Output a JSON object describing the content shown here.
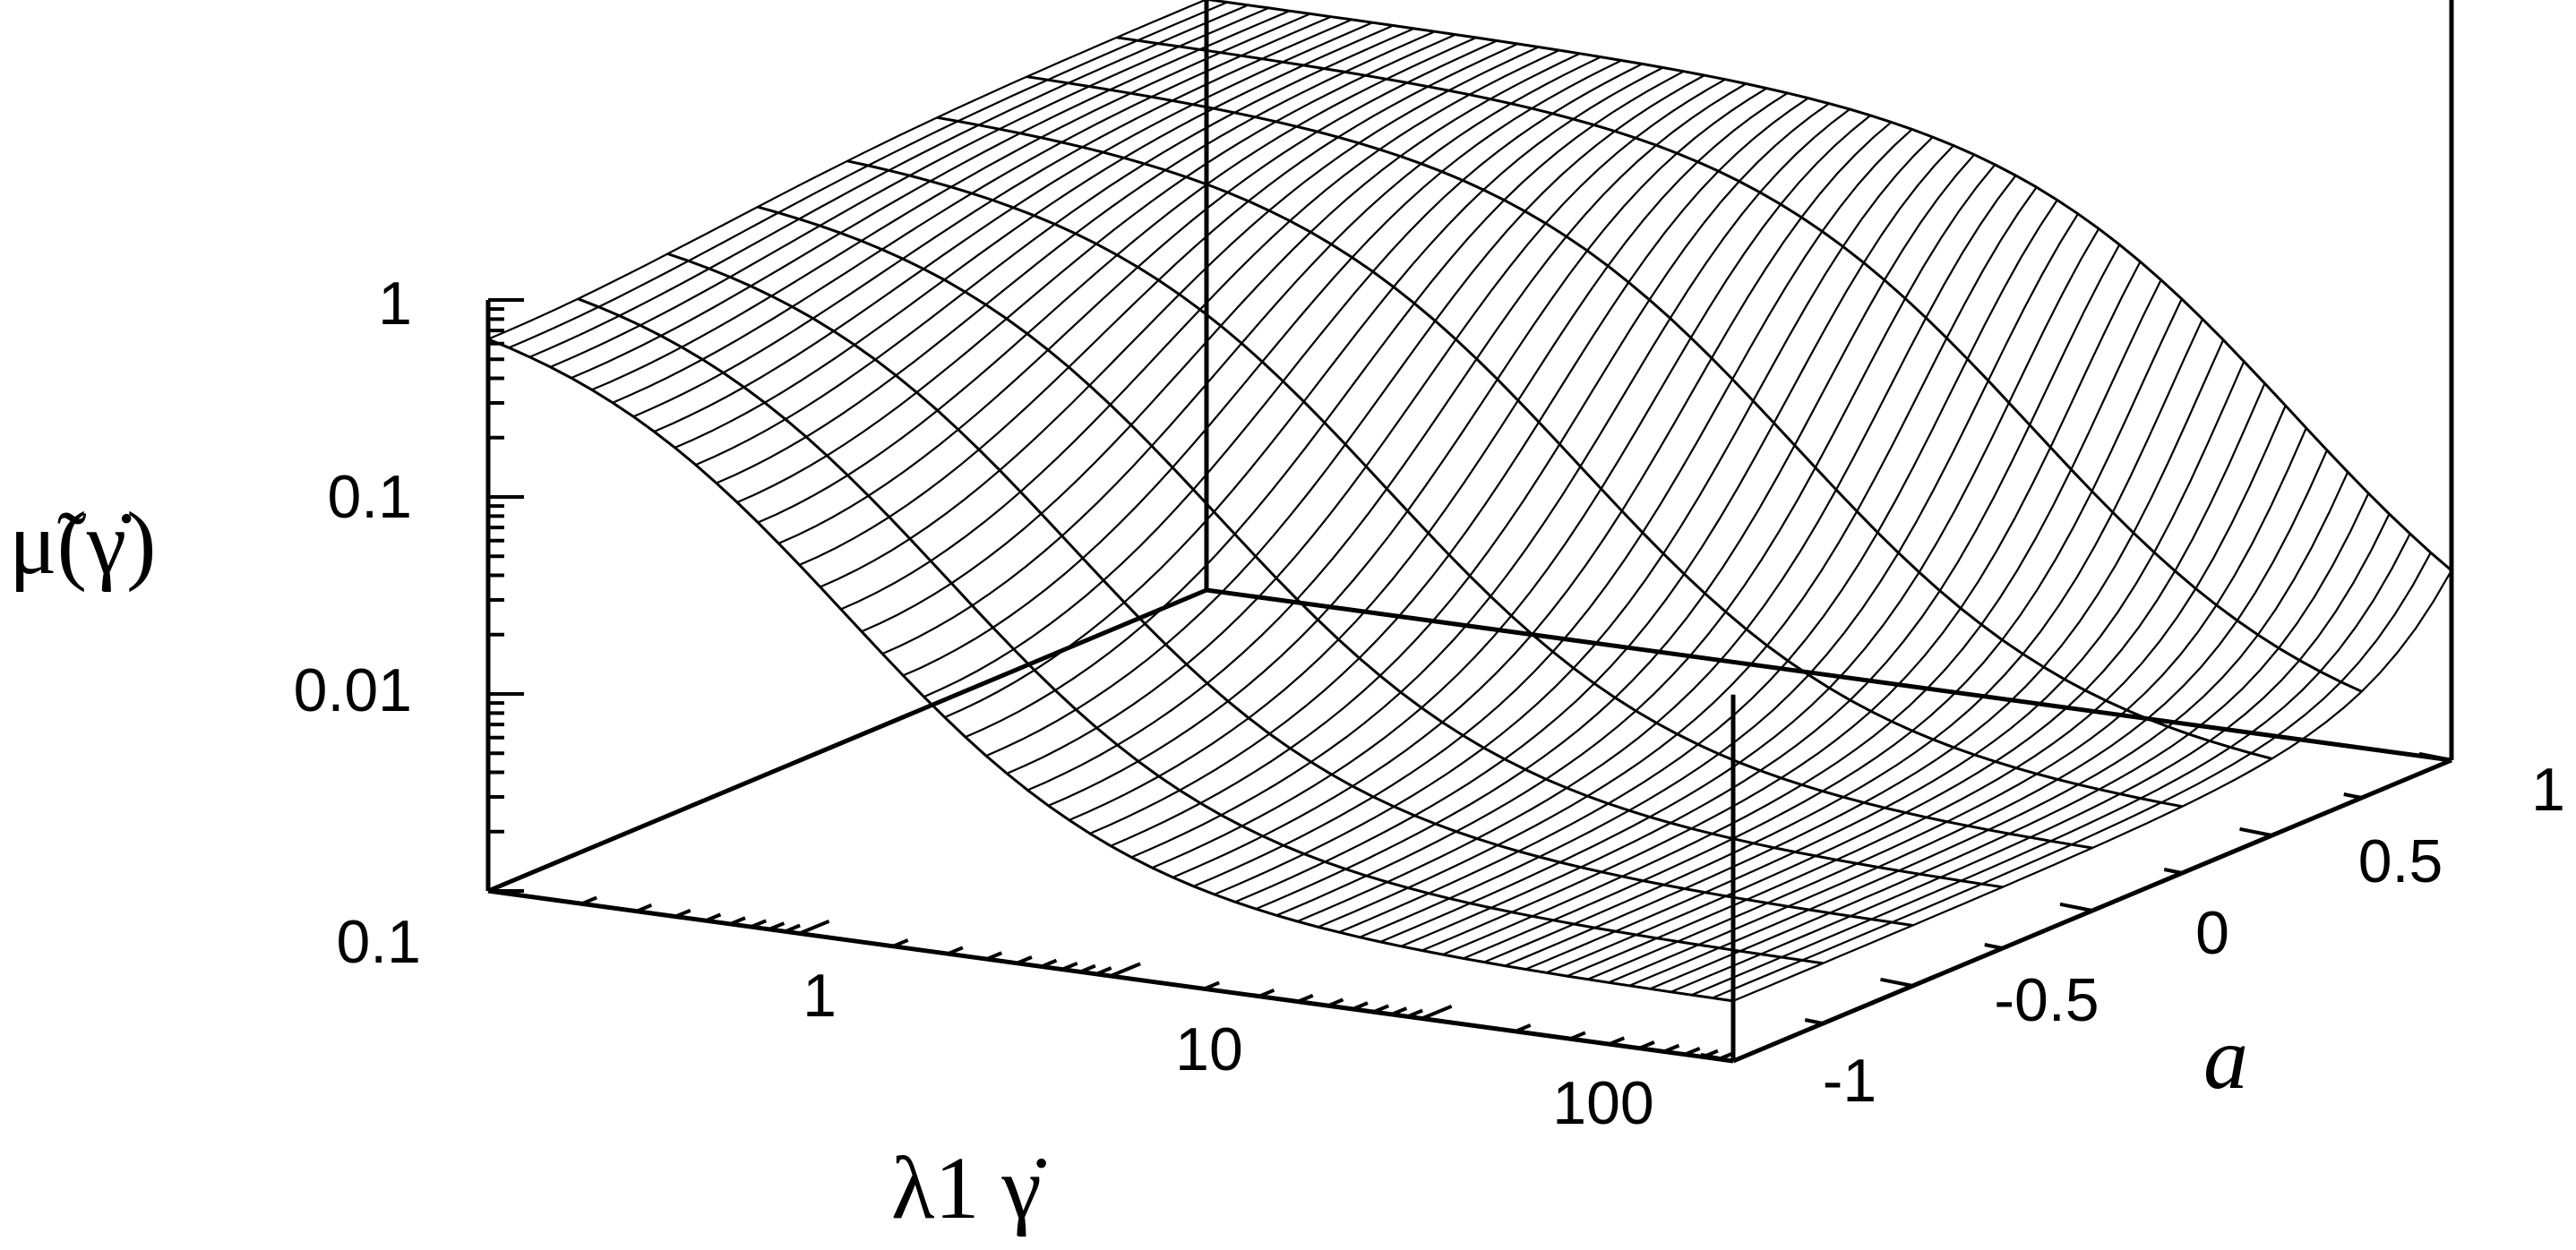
{
  "chart_data": {
    "type": "surface",
    "z_axis": {
      "label": "μ̃(γ̇)",
      "scale": "log",
      "ticks": [
        "1",
        "0.1",
        "0.01"
      ],
      "range": [
        0.001,
        1
      ]
    },
    "x_axis": {
      "label": "λ1 γ̇",
      "scale": "log",
      "ticks": [
        "0.1",
        "1",
        "10",
        "100"
      ],
      "range": [
        0.1,
        1000
      ]
    },
    "y_axis": {
      "label": "a",
      "scale": "linear",
      "ticks": [
        "-1",
        "-0.5",
        "0",
        "0.5",
        "1"
      ],
      "range": [
        -1,
        1
      ]
    },
    "surface": {
      "description_values": {
        "low_shear_plateau": 1,
        "high_shear_limit_approx": 0.002,
        "a_values_sampled": [
          -1,
          -0.75,
          -0.5,
          -0.25,
          0,
          0.25,
          0.5,
          0.75,
          1
        ]
      }
    },
    "grid": false,
    "legend": "none"
  }
}
